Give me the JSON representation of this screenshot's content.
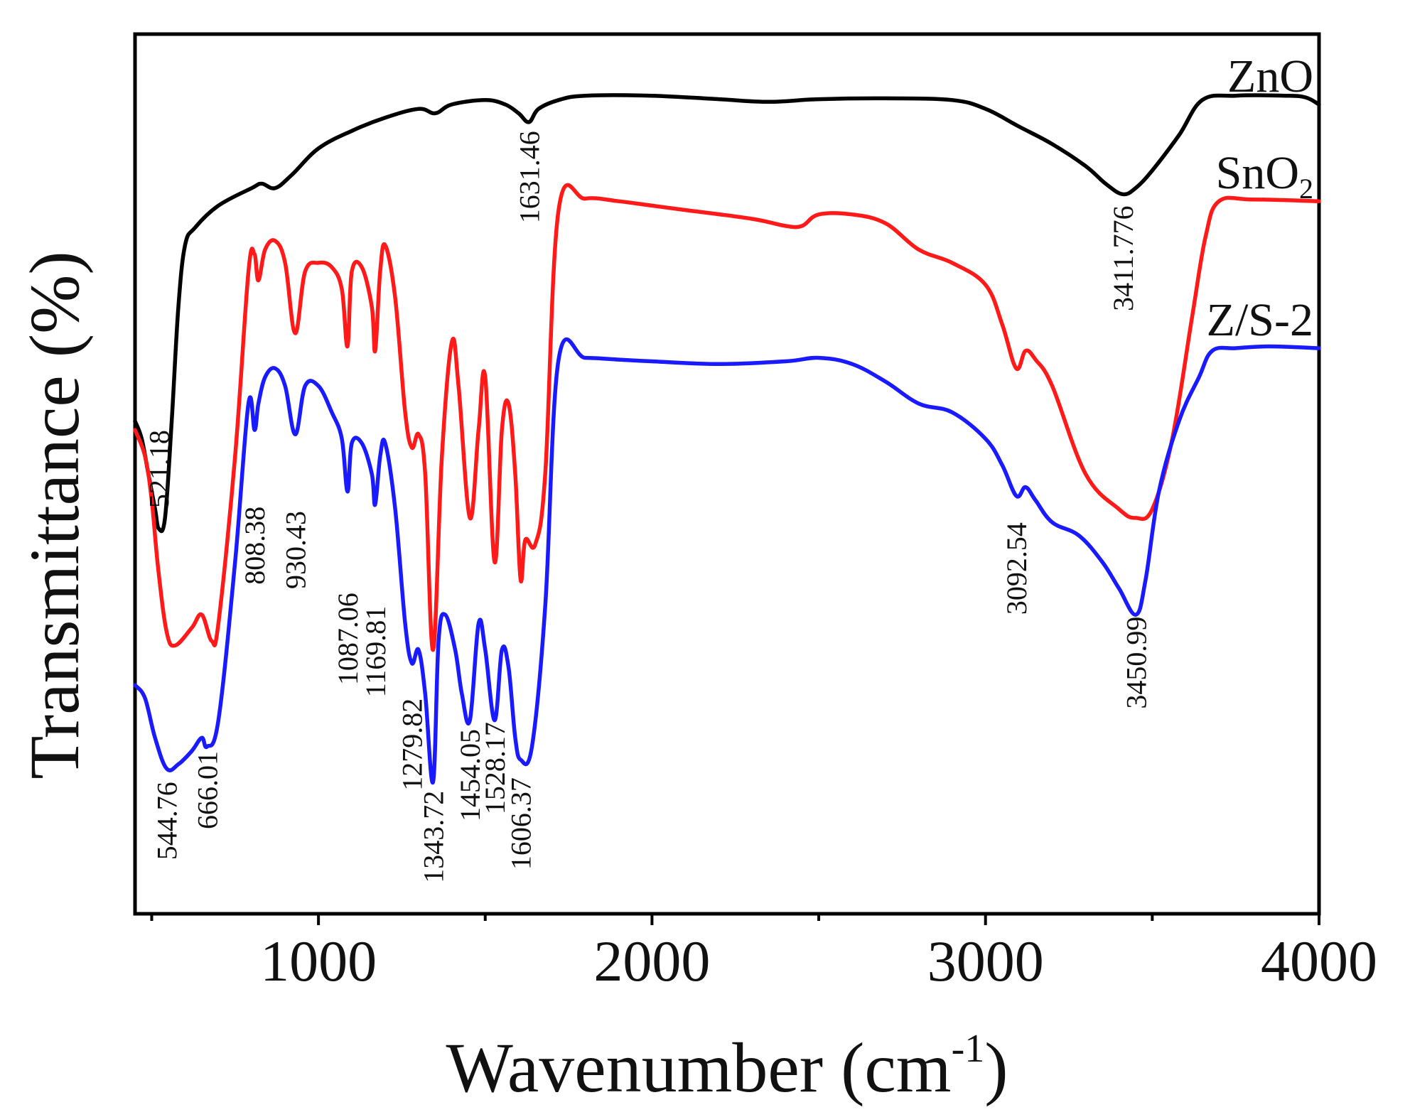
{
  "chart_data": {
    "type": "line",
    "title": "",
    "xlabel": "Wavenumber (cm-1)",
    "xlabel_parts": {
      "main": "Wavenumber (cm",
      "sup": "-1",
      "close": ")"
    },
    "ylabel": "Transmittance (%)",
    "xlim": [
      450,
      4000
    ],
    "ylim": [
      0,
      100
    ],
    "xticks": [
      1000,
      2000,
      3000,
      4000
    ],
    "grid": false,
    "legend": "inline labels at right end of each curve",
    "series": [
      {
        "name": "ZnO",
        "label": {
          "main": "ZnO",
          "sub": ""
        },
        "color": "#000000",
        "points": [
          [
            450,
            56
          ],
          [
            470,
            54
          ],
          [
            490,
            50
          ],
          [
            510,
            46
          ],
          [
            521,
            43.8
          ],
          [
            540,
            45
          ],
          [
            560,
            56
          ],
          [
            580,
            69
          ],
          [
            600,
            76
          ],
          [
            630,
            78
          ],
          [
            700,
            80.5
          ],
          [
            800,
            82.5
          ],
          [
            830,
            83
          ],
          [
            870,
            82.5
          ],
          [
            920,
            84
          ],
          [
            1000,
            87
          ],
          [
            1100,
            89
          ],
          [
            1200,
            90.5
          ],
          [
            1300,
            91.5
          ],
          [
            1350,
            91
          ],
          [
            1400,
            92
          ],
          [
            1500,
            92.5
          ],
          [
            1560,
            92
          ],
          [
            1600,
            91
          ],
          [
            1631,
            90
          ],
          [
            1660,
            91.5
          ],
          [
            1720,
            92.5
          ],
          [
            1800,
            93
          ],
          [
            2000,
            93
          ],
          [
            2200,
            92.6
          ],
          [
            2350,
            92.3
          ],
          [
            2500,
            92.6
          ],
          [
            2700,
            92.7
          ],
          [
            2900,
            92.5
          ],
          [
            3000,
            91.5
          ],
          [
            3100,
            89.5
          ],
          [
            3200,
            87.5
          ],
          [
            3300,
            85
          ],
          [
            3360,
            83
          ],
          [
            3411,
            81.8
          ],
          [
            3450,
            82.5
          ],
          [
            3500,
            84.5
          ],
          [
            3580,
            88.5
          ],
          [
            3650,
            92.5
          ],
          [
            3750,
            93
          ],
          [
            3900,
            93
          ],
          [
            3960,
            92.8
          ],
          [
            4000,
            92
          ]
        ]
      },
      {
        "name": "SnO2",
        "label": {
          "main": "SnO",
          "sub": "2"
        },
        "color": "#ff1a1a",
        "points": [
          [
            450,
            55
          ],
          [
            480,
            52
          ],
          [
            500,
            47
          ],
          [
            520,
            39
          ],
          [
            545,
            32
          ],
          [
            570,
            30.5
          ],
          [
            620,
            32.5
          ],
          [
            650,
            34
          ],
          [
            680,
            31
          ],
          [
            700,
            33
          ],
          [
            750,
            52
          ],
          [
            790,
            73
          ],
          [
            808,
            75
          ],
          [
            820,
            72
          ],
          [
            840,
            75.5
          ],
          [
            870,
            76.5
          ],
          [
            900,
            74
          ],
          [
            930,
            66
          ],
          [
            960,
            73
          ],
          [
            1000,
            74
          ],
          [
            1040,
            73.5
          ],
          [
            1070,
            71
          ],
          [
            1087,
            64.5
          ],
          [
            1100,
            73
          ],
          [
            1130,
            73.5
          ],
          [
            1160,
            69
          ],
          [
            1170,
            64
          ],
          [
            1185,
            73
          ],
          [
            1200,
            76
          ],
          [
            1230,
            70
          ],
          [
            1260,
            57
          ],
          [
            1280,
            53
          ],
          [
            1300,
            54.5
          ],
          [
            1320,
            50
          ],
          [
            1343.72,
            30
          ],
          [
            1370,
            52
          ],
          [
            1400,
            65
          ],
          [
            1420,
            60
          ],
          [
            1454,
            45
          ],
          [
            1480,
            55
          ],
          [
            1500,
            61
          ],
          [
            1528,
            40
          ],
          [
            1550,
            55
          ],
          [
            1570,
            58
          ],
          [
            1590,
            50
          ],
          [
            1606,
            38
          ],
          [
            1620,
            42.5
          ],
          [
            1650,
            42
          ],
          [
            1680,
            50
          ],
          [
            1720,
            80
          ],
          [
            1800,
            81.3
          ],
          [
            1900,
            81
          ],
          [
            2000,
            80.5
          ],
          [
            2100,
            80
          ],
          [
            2300,
            79
          ],
          [
            2400,
            78.2
          ],
          [
            2450,
            78.2
          ],
          [
            2500,
            79.5
          ],
          [
            2600,
            79.5
          ],
          [
            2700,
            78.5
          ],
          [
            2800,
            75.5
          ],
          [
            2900,
            74
          ],
          [
            3000,
            71.5
          ],
          [
            3050,
            67
          ],
          [
            3092,
            62
          ],
          [
            3120,
            64
          ],
          [
            3150,
            63
          ],
          [
            3200,
            60
          ],
          [
            3300,
            50
          ],
          [
            3400,
            46
          ],
          [
            3450,
            45
          ],
          [
            3500,
            46
          ],
          [
            3560,
            54
          ],
          [
            3620,
            68
          ],
          [
            3660,
            77
          ],
          [
            3700,
            81
          ],
          [
            3800,
            81.2
          ],
          [
            4000,
            81
          ]
        ]
      },
      {
        "name": "Z/S-2",
        "label": {
          "main": "Z/S-2",
          "sub": ""
        },
        "color": "#1a1aff",
        "points": [
          [
            450,
            26
          ],
          [
            480,
            24.5
          ],
          [
            510,
            20
          ],
          [
            544.76,
            16.5
          ],
          [
            580,
            17
          ],
          [
            620,
            18.5
          ],
          [
            650,
            20
          ],
          [
            666.01,
            19
          ],
          [
            700,
            22
          ],
          [
            750,
            40
          ],
          [
            790,
            58
          ],
          [
            808.38,
            55
          ],
          [
            820,
            58
          ],
          [
            840,
            61
          ],
          [
            870,
            62
          ],
          [
            900,
            60
          ],
          [
            930.43,
            54.5
          ],
          [
            960,
            60
          ],
          [
            1000,
            60
          ],
          [
            1040,
            57
          ],
          [
            1070,
            54
          ],
          [
            1087.06,
            48
          ],
          [
            1100,
            53.5
          ],
          [
            1130,
            53.5
          ],
          [
            1160,
            50
          ],
          [
            1169.81,
            46.5
          ],
          [
            1185,
            52
          ],
          [
            1200,
            53.5
          ],
          [
            1230,
            46
          ],
          [
            1260,
            33
          ],
          [
            1279.82,
            28.5
          ],
          [
            1300,
            30
          ],
          [
            1320,
            25
          ],
          [
            1343.72,
            15
          ],
          [
            1360,
            31
          ],
          [
            1380,
            34
          ],
          [
            1410,
            30
          ],
          [
            1430,
            25
          ],
          [
            1454.05,
            22
          ],
          [
            1480,
            33
          ],
          [
            1500,
            30
          ],
          [
            1528.17,
            22
          ],
          [
            1550,
            30
          ],
          [
            1570,
            28
          ],
          [
            1590,
            20
          ],
          [
            1606.37,
            17.5
          ],
          [
            1640,
            19
          ],
          [
            1680,
            35
          ],
          [
            1720,
            63
          ],
          [
            1800,
            63.2
          ],
          [
            1900,
            63
          ],
          [
            2000,
            62.8
          ],
          [
            2200,
            62.5
          ],
          [
            2400,
            62.8
          ],
          [
            2500,
            63.2
          ],
          [
            2600,
            62.5
          ],
          [
            2700,
            60.5
          ],
          [
            2800,
            58
          ],
          [
            2900,
            57
          ],
          [
            3000,
            54
          ],
          [
            3050,
            51
          ],
          [
            3092.54,
            47.5
          ],
          [
            3120,
            48.5
          ],
          [
            3150,
            47
          ],
          [
            3200,
            44.5
          ],
          [
            3280,
            43
          ],
          [
            3350,
            40
          ],
          [
            3400,
            37
          ],
          [
            3450.99,
            34
          ],
          [
            3480,
            38
          ],
          [
            3520,
            48
          ],
          [
            3580,
            56
          ],
          [
            3640,
            61
          ],
          [
            3680,
            64
          ],
          [
            3750,
            64.3
          ],
          [
            3850,
            64.5
          ],
          [
            4000,
            64.3
          ]
        ]
      }
    ],
    "annotations": [
      {
        "text": "521.18",
        "x": 521.18,
        "y": 55
      },
      {
        "text": "1631.46",
        "x": 1631.46,
        "y": 89
      },
      {
        "text": "3411.776",
        "x": 3411.776,
        "y": 80.5
      },
      {
        "text": "808.38",
        "x": 808.38,
        "y": 46.3
      },
      {
        "text": "930.43",
        "x": 930.43,
        "y": 45.8
      },
      {
        "text": "1087.06",
        "x": 1087.06,
        "y": 36.5
      },
      {
        "text": "1169.81",
        "x": 1169.81,
        "y": 35
      },
      {
        "text": "1279.82",
        "x": 1279.82,
        "y": 24.5
      },
      {
        "text": "1343.72",
        "x": 1343.72,
        "y": 14
      },
      {
        "text": "1454.05",
        "x": 1454.05,
        "y": 21
      },
      {
        "text": "1528.17",
        "x": 1528.17,
        "y": 21.8
      },
      {
        "text": "1606.37",
        "x": 1606.37,
        "y": 15.5
      },
      {
        "text": "544.76",
        "x": 544.76,
        "y": 15
      },
      {
        "text": "666.01",
        "x": 666.01,
        "y": 18.5
      },
      {
        "text": "3092.54",
        "x": 3092.54,
        "y": 44.5
      },
      {
        "text": "3450.99",
        "x": 3450.99,
        "y": 33.8
      }
    ]
  }
}
